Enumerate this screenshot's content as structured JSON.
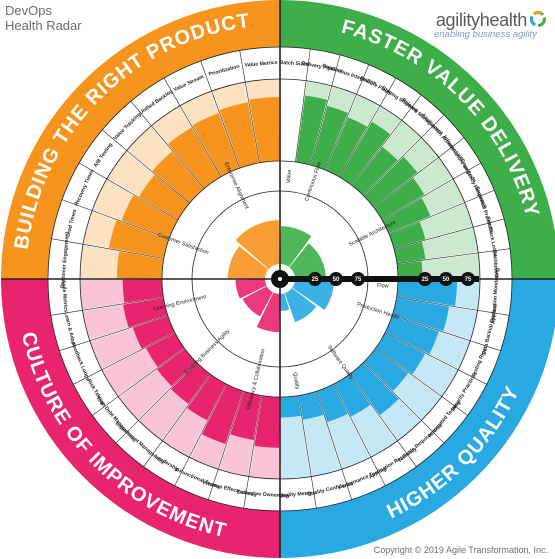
{
  "title": {
    "line1": "DevOps",
    "line2": "Health Radar"
  },
  "brand": {
    "name": "agilityhealth",
    "tagline": "enabling business agility"
  },
  "copyright": "Copyright © 2019 Agile Transformation, Inc.",
  "chart_data": {
    "type": "radar",
    "scale_labels": [
      "25",
      "50",
      "75"
    ],
    "sectors": [
      {
        "name": "FASTER VALUE DELIVERY",
        "color": "#3dae49",
        "competencies": [
          {
            "name": "Continuous Flow",
            "dims": [
              {
                "name": "Batch Sizes",
                "score": 0.0
              },
              {
                "name": "Delivery Pipeline",
                "score": 0.82
              },
              {
                "name": "Continuous Integration",
                "score": 0.75
              },
              {
                "name": "Feature Flags",
                "score": 0.7
              },
              {
                "name": "Staging Shipping",
                "score": 0.78
              }
            ]
          },
          {
            "name": "Scalable Architecture",
            "dims": [
              {
                "name": "Release Management",
                "score": 0.6
              },
              {
                "name": "Application Architecture",
                "score": 0.68
              },
              {
                "name": "Infrastructure as Code",
                "score": 0.6
              },
              {
                "name": "Emergency Response",
                "score": 0.55
              },
              {
                "name": "Technical Practices",
                "score": 0.4
              },
              {
                "name": "Feedback Loops",
                "score": 0.35
              },
              {
                "name": "Dashboards",
                "score": 0.3
              }
            ]
          },
          {
            "name": "Flow",
            "dims": []
          }
        ]
      },
      {
        "name": "HIGHER QUALITY",
        "color": "#29a9e1",
        "competencies": [
          {
            "name": "Production Health",
            "dims": [
              {
                "name": "Application Monitoring",
                "score": 0.72
              },
              {
                "name": "Data Backup Restore",
                "score": 0.65
              },
              {
                "name": "Testing Rigor",
                "score": 0.6
              },
              {
                "name": "Security Practices",
                "score": 0.55
              }
            ]
          },
          {
            "name": "Software Quality",
            "dims": [
              {
                "name": "Automated Testing",
                "score": 0.5
              },
              {
                "name": "Testable Requirements",
                "score": 0.62
              },
              {
                "name": "Application Resiliency",
                "score": 0.45
              },
              {
                "name": "Performance Testing",
                "score": 0.4
              }
            ]
          },
          {
            "name": "Quality",
            "dims": [
              {
                "name": "Quality Confidence",
                "score": 0.3
              },
              {
                "name": "Quality Metrics",
                "score": 0.25
              }
            ]
          }
        ]
      },
      {
        "name": "CULTURE OF IMPROVEMENT",
        "color": "#e8246f",
        "competencies": [
          {
            "name": "Efficiency & Collaboration",
            "dims": [
              {
                "name": "Collective Ownership",
                "score": 0.62
              },
              {
                "name": "Process Effectiveness",
                "score": 0.55
              },
              {
                "name": "X-Functional Teams",
                "score": 0.68
              }
            ]
          },
          {
            "name": "Enabling Business Agility",
            "dims": [
              {
                "name": "Leadership",
                "score": 0.5
              },
              {
                "name": "Impediment Management",
                "score": 0.45
              },
              {
                "name": "Tech Debt Management",
                "score": 0.42
              },
              {
                "name": "Risk Taking",
                "score": 0.4
              }
            ]
          },
          {
            "name": "Learning Environment",
            "dims": [
              {
                "name": "Feedback Loops",
                "score": 0.45
              },
              {
                "name": "Learn & Adapt",
                "score": 0.5
              },
              {
                "name": "Agile Metrics",
                "score": 0.48
              }
            ]
          }
        ]
      },
      {
        "name": "BUILDING THE RIGHT PRODUCT",
        "color": "#f7941d",
        "competencies": [
          {
            "name": "Customer Satisfaction",
            "dims": [
              {
                "name": "Customer Engagement",
                "score": 0.55
              },
              {
                "name": "Lead Times",
                "score": 0.68
              },
              {
                "name": "Recovery Times",
                "score": 0.62
              },
              {
                "name": "A/B Testing",
                "score": 0.55
              }
            ]
          },
          {
            "name": "Enterprise Alignment",
            "dims": [
              {
                "name": "Value Tracking",
                "score": 0.6
              },
              {
                "name": "Unified Backlog",
                "score": 0.7
              },
              {
                "name": "Value Stream",
                "score": 0.72
              },
              {
                "name": "Prioritization",
                "score": 0.75
              },
              {
                "name": "Value Metrics",
                "score": 0.78
              }
            ]
          },
          {
            "name": "Value",
            "dims": []
          }
        ]
      }
    ]
  }
}
